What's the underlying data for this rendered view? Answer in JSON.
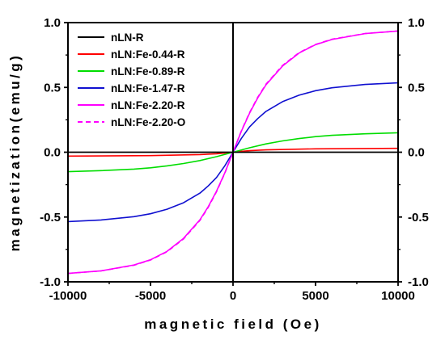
{
  "chart_data": {
    "type": "line",
    "xlabel": "magnetic field (Oe)",
    "ylabel": "magnetization(emu/g)",
    "xlim": [
      -10000,
      10000
    ],
    "ylim": [
      -1.0,
      1.0
    ],
    "x_ticks": [
      -10000,
      -5000,
      0,
      5000,
      10000
    ],
    "x_tick_labels": [
      "-10000",
      "-5000",
      "0",
      "5000",
      "10000"
    ],
    "y_ticks": [
      -1.0,
      -0.5,
      0.0,
      0.5,
      1.0
    ],
    "y_tick_labels": [
      "-1.0",
      "-0.5",
      "0.0",
      "0.5",
      "1.0"
    ],
    "right_axis_tick_labels": [
      "-1.0",
      "-0.5",
      "0.0",
      "0.5",
      "1.0"
    ],
    "grid": false,
    "legend_position": "top-left",
    "series": [
      {
        "name": "nLN-R",
        "color": "#000000",
        "dash": "solid",
        "x": [
          -10000,
          10000
        ],
        "y": [
          0.0,
          0.0
        ]
      },
      {
        "name": "nLN:Fe-0.44-R",
        "color": "#ff0000",
        "dash": "solid",
        "x": [
          -10000,
          -5000,
          -2000,
          -1000,
          -500,
          0,
          500,
          1000,
          2000,
          5000,
          10000
        ],
        "y": [
          -0.03,
          -0.026,
          -0.018,
          -0.012,
          -0.007,
          0.0,
          0.007,
          0.012,
          0.018,
          0.026,
          0.03
        ]
      },
      {
        "name": "nLN:Fe-0.89-R",
        "color": "#00dd00",
        "dash": "solid",
        "x": [
          -10000,
          -8000,
          -6000,
          -5000,
          -4000,
          -3000,
          -2000,
          -1000,
          0,
          1000,
          2000,
          3000,
          4000,
          5000,
          6000,
          8000,
          10000
        ],
        "y": [
          -0.15,
          -0.142,
          -0.13,
          -0.12,
          -0.105,
          -0.087,
          -0.064,
          -0.034,
          0.0,
          0.034,
          0.064,
          0.087,
          0.105,
          0.12,
          0.13,
          0.142,
          0.15
        ]
      },
      {
        "name": "nLN:Fe-1.47-R",
        "color": "#1010d0",
        "dash": "solid",
        "x": [
          -10000,
          -8000,
          -6000,
          -5000,
          -4000,
          -3000,
          -2000,
          -1500,
          -1000,
          -500,
          0,
          500,
          1000,
          1500,
          2000,
          3000,
          4000,
          5000,
          6000,
          8000,
          10000
        ],
        "y": [
          -0.535,
          -0.523,
          -0.497,
          -0.475,
          -0.44,
          -0.39,
          -0.315,
          -0.26,
          -0.195,
          -0.105,
          0.0,
          0.105,
          0.195,
          0.26,
          0.315,
          0.39,
          0.44,
          0.475,
          0.497,
          0.523,
          0.535
        ]
      },
      {
        "name": "nLN:Fe-2.20-R",
        "color": "#ff00ff",
        "dash": "solid",
        "x": [
          -10000,
          -8000,
          -6000,
          -5000,
          -4000,
          -3000,
          -2000,
          -1500,
          -1000,
          -500,
          0,
          500,
          1000,
          1500,
          2000,
          3000,
          4000,
          5000,
          6000,
          8000,
          10000
        ],
        "y": [
          -0.935,
          -0.915,
          -0.87,
          -0.83,
          -0.765,
          -0.665,
          -0.52,
          -0.42,
          -0.3,
          -0.16,
          0.0,
          0.16,
          0.3,
          0.42,
          0.52,
          0.665,
          0.765,
          0.83,
          0.87,
          0.915,
          0.935
        ]
      },
      {
        "name": "nLN:Fe-2.20-O",
        "color": "#ff00ff",
        "dash": "dashed",
        "x": [
          -10000,
          -8000,
          -6000,
          -5000,
          -4000,
          -3000,
          -2000,
          -1500,
          -1000,
          -500,
          0,
          500,
          1000,
          1500,
          2000,
          3000,
          4000,
          5000,
          6000,
          8000,
          10000
        ],
        "y": [
          -0.935,
          -0.916,
          -0.872,
          -0.832,
          -0.768,
          -0.67,
          -0.525,
          -0.425,
          -0.305,
          -0.163,
          0.0,
          0.163,
          0.305,
          0.425,
          0.525,
          0.67,
          0.768,
          0.832,
          0.872,
          0.916,
          0.935
        ]
      }
    ]
  }
}
